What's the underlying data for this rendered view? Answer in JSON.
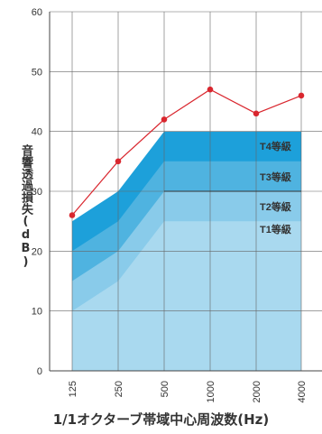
{
  "chart_data": {
    "type": "area",
    "title": "",
    "xlabel": "1/1オクターブ帯域中心周波数(Hz)",
    "ylabel": "音響透過損失(dB)",
    "categories": [
      "125",
      "250",
      "500",
      "1000",
      "2000",
      "4000"
    ],
    "yticks": [
      "0",
      "10",
      "20",
      "30",
      "40",
      "50",
      "60"
    ],
    "ylim": [
      0,
      60
    ],
    "grid": true,
    "grade_bands": [
      {
        "name": "T1等級",
        "values": [
          10,
          15,
          25,
          25,
          25,
          25
        ],
        "color": "#a9d9ef"
      },
      {
        "name": "T2等級",
        "values": [
          15,
          20,
          30,
          30,
          30,
          30
        ],
        "color": "#89cbea"
      },
      {
        "name": "T3等級",
        "values": [
          20,
          25,
          35,
          35,
          35,
          35
        ],
        "color": "#4fb3e0"
      },
      {
        "name": "T4等級",
        "values": [
          25,
          30,
          40,
          40,
          40,
          40
        ],
        "color": "#1da0da"
      }
    ],
    "series": [
      {
        "values": [
          26,
          35,
          42,
          47,
          43,
          46
        ],
        "color": "#d9262e"
      }
    ]
  }
}
